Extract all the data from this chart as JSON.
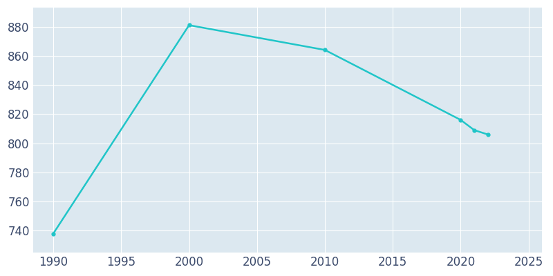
{
  "years": [
    1990,
    2000,
    2010,
    2020,
    2021,
    2022
  ],
  "population": [
    738,
    881,
    864,
    816,
    809,
    806
  ],
  "line_color": "#20c5c8",
  "marker": "o",
  "marker_size": 3.5,
  "line_width": 1.8,
  "fig_bg_color": "#ffffff",
  "plot_bg_color": "#dce8f0",
  "grid_color": "#ffffff",
  "tick_color": "#3b4a6b",
  "xlim": [
    1988.5,
    2026
  ],
  "ylim": [
    725,
    893
  ],
  "xticks": [
    1990,
    1995,
    2000,
    2005,
    2010,
    2015,
    2020,
    2025
  ],
  "yticks": [
    740,
    760,
    780,
    800,
    820,
    840,
    860,
    880
  ],
  "tick_fontsize": 12
}
